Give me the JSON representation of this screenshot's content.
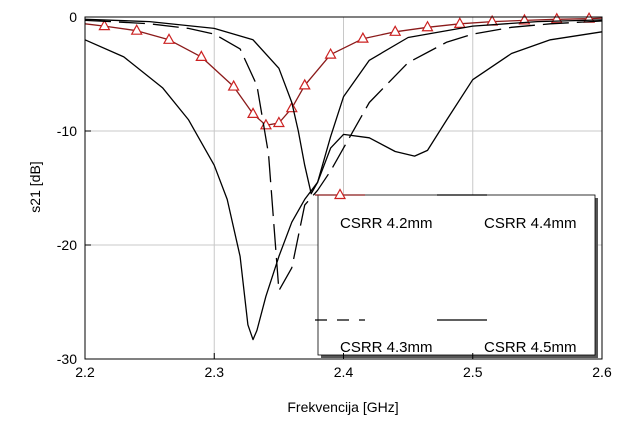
{
  "chart_data": {
    "type": "line",
    "title": "",
    "xlabel": "Frekvencija [GHz]",
    "ylabel": "s21 [dB]",
    "xlim": [
      2.2,
      2.6
    ],
    "ylim": [
      -30,
      0
    ],
    "xticks": [
      2.2,
      2.3,
      2.4,
      2.5,
      2.6
    ],
    "xtick_labels": [
      "2.2",
      "2.3",
      "2.4",
      "2.5",
      "2.6"
    ],
    "yticks": [
      0,
      -10,
      -20,
      -30
    ],
    "ytick_labels": [
      "0",
      "-10",
      "-20",
      "-30"
    ],
    "grid": true,
    "legend_position": "bottom-right",
    "series": [
      {
        "name": "CSRR 4.2mm",
        "style": "solid-triangle-markers",
        "color": "#8b1a1a",
        "marker_color": "#cc2222",
        "x": [
          2.2,
          2.215,
          2.24,
          2.265,
          2.29,
          2.315,
          2.33,
          2.34,
          2.35,
          2.36,
          2.37,
          2.39,
          2.415,
          2.44,
          2.465,
          2.49,
          2.515,
          2.54,
          2.565,
          2.59,
          2.6
        ],
        "y": [
          -0.6,
          -0.8,
          -1.2,
          -2.0,
          -3.5,
          -6.1,
          -8.5,
          -9.5,
          -9.3,
          -8.0,
          -6.0,
          -3.3,
          -1.9,
          -1.3,
          -0.9,
          -0.6,
          -0.4,
          -0.3,
          -0.2,
          -0.15,
          -0.1
        ]
      },
      {
        "name": "CSRR 4.3mm",
        "style": "long-dash",
        "color": "#000000",
        "x": [
          2.2,
          2.22,
          2.25,
          2.28,
          2.3,
          2.32,
          2.333,
          2.342,
          2.35,
          2.36,
          2.37,
          2.38,
          2.39,
          2.4,
          2.42,
          2.45,
          2.48,
          2.5,
          2.53,
          2.56,
          2.6
        ],
        "y": [
          -0.3,
          -0.4,
          -0.6,
          -1.0,
          -1.5,
          -2.8,
          -6.0,
          -12.0,
          -24.0,
          -22.0,
          -16.5,
          -15.2,
          -13.5,
          -11.5,
          -7.5,
          -4.0,
          -2.2,
          -1.5,
          -0.9,
          -0.6,
          -0.35
        ]
      },
      {
        "name": "CSRR 4.4mm",
        "style": "solid",
        "color": "#000000",
        "x": [
          2.2,
          2.25,
          2.3,
          2.33,
          2.35,
          2.36,
          2.365,
          2.37,
          2.375,
          2.38,
          2.39,
          2.4,
          2.42,
          2.45,
          2.5,
          2.55,
          2.6
        ],
        "y": [
          -0.2,
          -0.4,
          -1.0,
          -2.0,
          -4.5,
          -7.5,
          -10.0,
          -13.0,
          -15.5,
          -14.5,
          -10.5,
          -7.0,
          -3.8,
          -1.8,
          -0.8,
          -0.4,
          -0.25
        ]
      },
      {
        "name": "CSRR 4.5mm",
        "style": "solid",
        "color": "#000000",
        "x": [
          2.2,
          2.23,
          2.26,
          2.28,
          2.3,
          2.31,
          2.32,
          2.326,
          2.33,
          2.333,
          2.34,
          2.35,
          2.36,
          2.37,
          2.38,
          2.39,
          2.4,
          2.42,
          2.44,
          2.455,
          2.465,
          2.48,
          2.5,
          2.53,
          2.56,
          2.6
        ],
        "y": [
          -2.0,
          -3.5,
          -6.2,
          -9.0,
          -13.0,
          -16.0,
          -21.0,
          -27.0,
          -28.3,
          -27.5,
          -24.5,
          -21.0,
          -18.0,
          -16.0,
          -14.5,
          -11.5,
          -10.3,
          -10.6,
          -11.8,
          -12.2,
          -11.7,
          -9.0,
          -5.5,
          -3.2,
          -2.0,
          -1.3
        ]
      }
    ]
  }
}
